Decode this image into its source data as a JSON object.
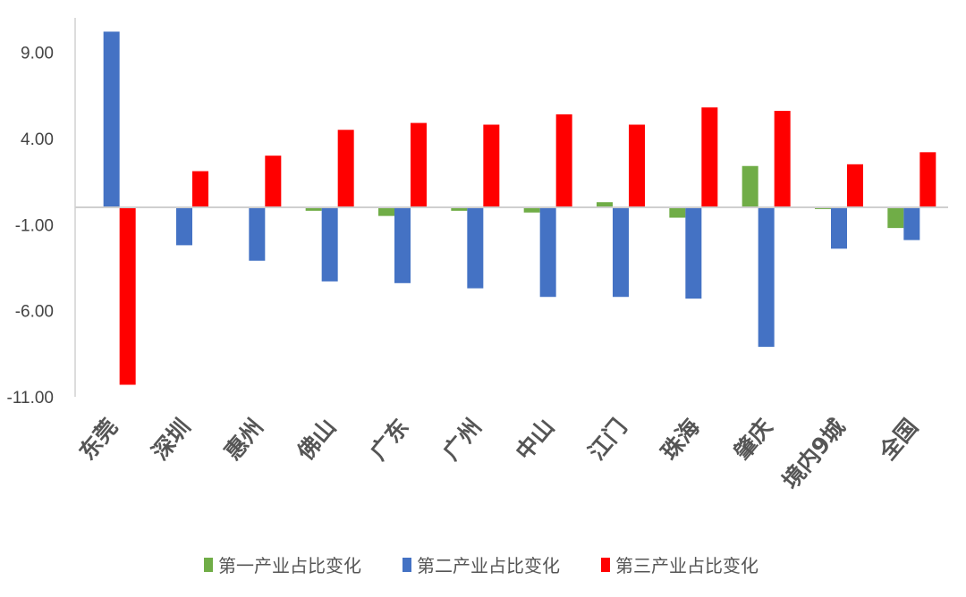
{
  "chart_data": {
    "type": "bar",
    "categories": [
      "东莞",
      "深圳",
      "惠州",
      "佛山",
      "广东",
      "广州",
      "中山",
      "江门",
      "珠海",
      "肇庆",
      "境内9城",
      "全国"
    ],
    "series": [
      {
        "name": "第一产业占比变化",
        "color": "#70ad47",
        "values": [
          0.0,
          0.0,
          0.0,
          -0.2,
          -0.5,
          -0.2,
          -0.3,
          0.3,
          -0.6,
          2.4,
          -0.1,
          -1.2
        ]
      },
      {
        "name": "第二产业占比变化",
        "color": "#4472c4",
        "values": [
          10.2,
          -2.2,
          -3.1,
          -4.3,
          -4.4,
          -4.7,
          -5.2,
          -5.2,
          -5.3,
          -8.1,
          -2.4,
          -1.9
        ]
      },
      {
        "name": "第三产业占比变化",
        "color": "#ff0000",
        "values": [
          -10.3,
          2.1,
          3.0,
          4.5,
          4.9,
          4.8,
          5.4,
          4.8,
          5.8,
          5.6,
          2.5,
          3.2
        ]
      }
    ],
    "ylim": [
      -11,
      11
    ],
    "yticks": [
      "9.00",
      "4.00",
      "-1.00",
      "-6.00",
      "-11.00"
    ],
    "ytick_values": [
      9,
      4,
      -1,
      -6,
      -11
    ],
    "grid": false,
    "legend_position": "bottom"
  }
}
